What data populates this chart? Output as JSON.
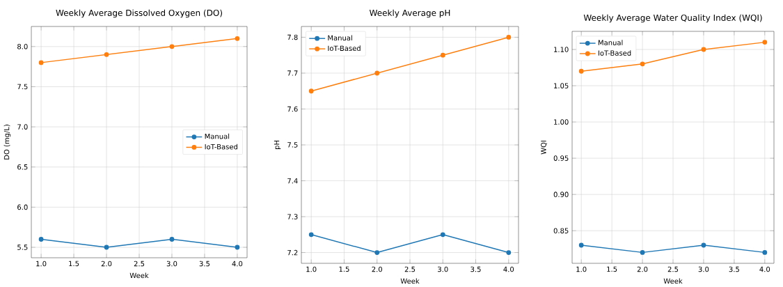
{
  "chart_data": [
    {
      "type": "line",
      "title": "Weekly Average Dissolved Oxygen (DO)",
      "xlabel": "Week",
      "ylabel": "DO (mg/L)",
      "x": [
        1,
        2,
        3,
        4
      ],
      "series": [
        {
          "name": "Manual",
          "color": "#1f77b4",
          "values": [
            5.6,
            5.5,
            5.6,
            5.5
          ]
        },
        {
          "name": "IoT-Based",
          "color": "#ff7f0e",
          "values": [
            7.8,
            7.9,
            8.0,
            8.1
          ]
        }
      ],
      "xlim": [
        0.85,
        4.15
      ],
      "ylim": [
        5.37,
        8.25
      ],
      "xticks": [
        {
          "value": 1,
          "label": "1.0"
        },
        1.5,
        {
          "value": 2,
          "label": "2.0"
        },
        2.5,
        {
          "value": 3,
          "label": "3.0"
        },
        3.5,
        {
          "value": 4,
          "label": "4.0"
        }
      ],
      "yticks": [
        5.5,
        {
          "value": 6,
          "label": "6.0"
        },
        6.5,
        {
          "value": 7,
          "label": "7.0"
        },
        7.5,
        {
          "value": 8,
          "label": "8.0"
        }
      ],
      "grid": true,
      "legend": "right",
      "marker": "circle",
      "line_style": "solid"
    },
    {
      "type": "line",
      "title": "Weekly Average pH",
      "xlabel": "Week",
      "ylabel": "pH",
      "x": [
        1,
        2,
        3,
        4
      ],
      "series": [
        {
          "name": "Manual",
          "color": "#1f77b4",
          "values": [
            7.25,
            7.2,
            7.25,
            7.2
          ]
        },
        {
          "name": "IoT-Based",
          "color": "#ff7f0e",
          "values": [
            7.65,
            7.7,
            7.75,
            7.8
          ]
        }
      ],
      "xlim": [
        0.85,
        4.15
      ],
      "ylim": [
        7.17,
        7.83
      ],
      "xticks": [
        {
          "value": 1,
          "label": "1.0"
        },
        1.5,
        {
          "value": 2,
          "label": "2.0"
        },
        2.5,
        {
          "value": 3,
          "label": "3.0"
        },
        3.5,
        {
          "value": 4,
          "label": "4.0"
        }
      ],
      "yticks": [
        7.2,
        7.3,
        7.4,
        7.5,
        7.6,
        7.7,
        7.8
      ],
      "grid": true,
      "legend": "top left",
      "marker": "circle",
      "line_style": "solid"
    },
    {
      "type": "line",
      "title": "Weekly Average Water Quality Index (WQI)",
      "xlabel": "Week",
      "ylabel": "WQI",
      "x": [
        1,
        2,
        3,
        4
      ],
      "series": [
        {
          "name": "Manual",
          "color": "#1f77b4",
          "values": [
            0.83,
            0.82,
            0.83,
            0.82
          ]
        },
        {
          "name": "IoT-Based",
          "color": "#ff7f0e",
          "values": [
            1.07,
            1.08,
            1.1,
            1.11
          ]
        }
      ],
      "xlim": [
        0.85,
        4.15
      ],
      "ylim": [
        0.805,
        1.125
      ],
      "xticks": [
        {
          "value": 1,
          "label": "1.0"
        },
        1.5,
        {
          "value": 2,
          "label": "2.0"
        },
        2.5,
        {
          "value": 3,
          "label": "3.0"
        },
        3.5,
        {
          "value": 4,
          "label": "4.0"
        }
      ],
      "yticks": [
        0.85,
        {
          "value": 0.9,
          "label": "0.90"
        },
        0.95,
        {
          "value": 1.0,
          "label": "1.00"
        },
        1.05,
        {
          "value": 1.1,
          "label": "1.10"
        }
      ],
      "grid": true,
      "legend": "top left",
      "marker": "circle",
      "line_style": "solid"
    }
  ]
}
